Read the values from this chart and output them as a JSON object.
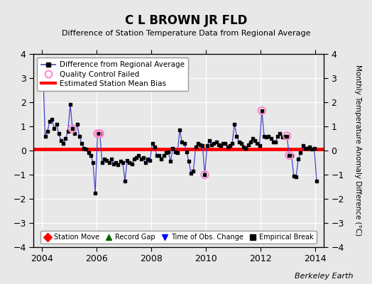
{
  "title": "C L BROWN JR FLD",
  "subtitle": "Difference of Station Temperature Data from Regional Average",
  "ylabel_right": "Monthly Temperature Anomaly Difference (°C)",
  "xlim": [
    2003.7,
    2014.3
  ],
  "ylim": [
    -4,
    4
  ],
  "yticks": [
    -4,
    -3,
    -2,
    -1,
    0,
    1,
    2,
    3,
    4
  ],
  "bias_line": 0.05,
  "bias_color": "#ff0000",
  "line_color": "#4444cc",
  "marker_color": "#000000",
  "qc_color": "#ff88cc",
  "background_color": "#e8e8e8",
  "grid_color": "#ffffff",
  "watermark": "Berkeley Earth",
  "time_series": [
    2004.042,
    2004.125,
    2004.208,
    2004.292,
    2004.375,
    2004.458,
    2004.542,
    2004.625,
    2004.708,
    2004.792,
    2004.875,
    2004.958,
    2005.042,
    2005.125,
    2005.208,
    2005.292,
    2005.375,
    2005.458,
    2005.542,
    2005.625,
    2005.708,
    2005.792,
    2005.875,
    2005.958,
    2006.042,
    2006.125,
    2006.208,
    2006.292,
    2006.375,
    2006.458,
    2006.542,
    2006.625,
    2006.708,
    2006.792,
    2006.875,
    2006.958,
    2007.042,
    2007.125,
    2007.208,
    2007.292,
    2007.375,
    2007.458,
    2007.542,
    2007.625,
    2007.708,
    2007.792,
    2007.875,
    2007.958,
    2008.042,
    2008.125,
    2008.208,
    2008.292,
    2008.375,
    2008.458,
    2008.542,
    2008.625,
    2008.708,
    2008.792,
    2008.875,
    2008.958,
    2009.042,
    2009.125,
    2009.208,
    2009.292,
    2009.375,
    2009.458,
    2009.542,
    2009.625,
    2009.708,
    2009.792,
    2009.875,
    2009.958,
    2010.042,
    2010.125,
    2010.208,
    2010.292,
    2010.375,
    2010.458,
    2010.542,
    2010.625,
    2010.708,
    2010.792,
    2010.875,
    2010.958,
    2011.042,
    2011.125,
    2011.208,
    2011.292,
    2011.375,
    2011.458,
    2011.542,
    2011.625,
    2011.708,
    2011.792,
    2011.875,
    2011.958,
    2012.042,
    2012.125,
    2012.208,
    2012.292,
    2012.375,
    2012.458,
    2012.542,
    2012.625,
    2012.708,
    2012.792,
    2012.875,
    2012.958,
    2013.042,
    2013.125,
    2013.208,
    2013.292,
    2013.375,
    2013.458,
    2013.542,
    2013.625,
    2013.708,
    2013.792,
    2013.875,
    2013.958,
    2014.042
  ],
  "values": [
    3.5,
    0.6,
    0.8,
    1.2,
    1.3,
    0.9,
    1.1,
    0.7,
    0.4,
    0.3,
    0.5,
    0.8,
    1.9,
    0.9,
    0.7,
    1.1,
    0.6,
    0.3,
    0.1,
    0.05,
    -0.1,
    -0.2,
    -0.5,
    -1.75,
    0.7,
    0.7,
    -0.5,
    -0.35,
    -0.4,
    -0.5,
    -0.35,
    -0.55,
    -0.5,
    -0.6,
    -0.45,
    -0.5,
    -1.25,
    -0.4,
    -0.5,
    -0.55,
    -0.35,
    -0.3,
    -0.2,
    -0.35,
    -0.3,
    -0.5,
    -0.35,
    -0.4,
    0.3,
    0.15,
    -0.2,
    -0.2,
    -0.35,
    -0.2,
    -0.1,
    -0.05,
    -0.45,
    0.1,
    -0.05,
    -0.1,
    0.85,
    0.35,
    0.3,
    -0.05,
    -0.45,
    -0.95,
    -0.85,
    0.15,
    0.3,
    0.25,
    0.2,
    -1.0,
    0.2,
    0.4,
    0.25,
    0.3,
    0.35,
    0.25,
    0.2,
    0.3,
    0.3,
    0.15,
    0.2,
    0.3,
    1.1,
    0.6,
    0.35,
    0.3,
    0.15,
    0.1,
    0.25,
    0.35,
    0.5,
    0.4,
    0.3,
    0.2,
    1.65,
    0.6,
    0.55,
    0.6,
    0.5,
    0.35,
    0.35,
    0.6,
    0.7,
    0.55,
    0.6,
    0.6,
    -0.2,
    -0.2,
    -1.05,
    -1.1,
    -0.35,
    -0.1,
    0.2,
    0.1,
    0.1,
    0.15,
    0.05,
    0.1,
    -1.25
  ],
  "qc_failed_indices": [
    13,
    24,
    25,
    71,
    96,
    107,
    108
  ],
  "xtick_positions": [
    2004,
    2006,
    2008,
    2010,
    2012,
    2014
  ],
  "xtick_labels": [
    "2004",
    "2006",
    "2008",
    "2010",
    "2012",
    "2014"
  ]
}
